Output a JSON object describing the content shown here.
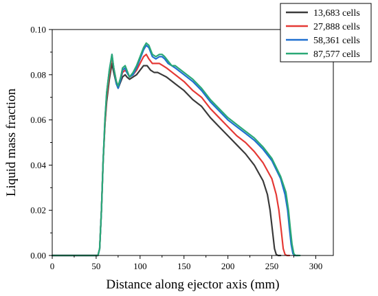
{
  "chart_data": {
    "type": "line",
    "xlabel": "Distance along ejector axis (mm)",
    "ylabel": "Liquid mass fraction",
    "xlim": [
      0,
      320
    ],
    "ylim": [
      0,
      0.1
    ],
    "x_ticks": [
      "0",
      "50",
      "100",
      "150",
      "200",
      "250",
      "300"
    ],
    "y_ticks": [
      "0.00",
      "0.02",
      "0.04",
      "0.06",
      "0.08",
      "0.10"
    ],
    "legend_position": "top-right",
    "grid": false,
    "series": [
      {
        "name": "13,683 cells",
        "color": "#3a3a3a",
        "points": [
          [
            0,
            0
          ],
          [
            52,
            0
          ],
          [
            54,
            0.003
          ],
          [
            56,
            0.02
          ],
          [
            58,
            0.042
          ],
          [
            60,
            0.058
          ],
          [
            62,
            0.068
          ],
          [
            65,
            0.078
          ],
          [
            68,
            0.085
          ],
          [
            70,
            0.081
          ],
          [
            73,
            0.076
          ],
          [
            75,
            0.074
          ],
          [
            78,
            0.077
          ],
          [
            80,
            0.079
          ],
          [
            83,
            0.08
          ],
          [
            85,
            0.079
          ],
          [
            88,
            0.078
          ],
          [
            92,
            0.079
          ],
          [
            96,
            0.08
          ],
          [
            100,
            0.082
          ],
          [
            104,
            0.084
          ],
          [
            108,
            0.084
          ],
          [
            112,
            0.082
          ],
          [
            116,
            0.081
          ],
          [
            120,
            0.081
          ],
          [
            125,
            0.08
          ],
          [
            130,
            0.079
          ],
          [
            140,
            0.076
          ],
          [
            150,
            0.073
          ],
          [
            160,
            0.069
          ],
          [
            170,
            0.066
          ],
          [
            180,
            0.061
          ],
          [
            190,
            0.057
          ],
          [
            200,
            0.053
          ],
          [
            210,
            0.049
          ],
          [
            220,
            0.045
          ],
          [
            230,
            0.04
          ],
          [
            240,
            0.033
          ],
          [
            245,
            0.027
          ],
          [
            248,
            0.02
          ],
          [
            251,
            0.01
          ],
          [
            253,
            0.003
          ],
          [
            255,
            0.0005
          ],
          [
            257,
            0
          ],
          [
            260,
            0
          ]
        ]
      },
      {
        "name": "27,888 cells",
        "color": "#e53935",
        "points": [
          [
            0,
            0
          ],
          [
            52,
            0
          ],
          [
            54,
            0.003
          ],
          [
            56,
            0.02
          ],
          [
            58,
            0.042
          ],
          [
            60,
            0.058
          ],
          [
            62,
            0.07
          ],
          [
            65,
            0.08
          ],
          [
            68,
            0.088
          ],
          [
            70,
            0.083
          ],
          [
            73,
            0.077
          ],
          [
            75,
            0.075
          ],
          [
            78,
            0.078
          ],
          [
            80,
            0.081
          ],
          [
            83,
            0.082
          ],
          [
            85,
            0.081
          ],
          [
            88,
            0.079
          ],
          [
            92,
            0.08
          ],
          [
            96,
            0.082
          ],
          [
            100,
            0.085
          ],
          [
            104,
            0.088
          ],
          [
            107,
            0.089
          ],
          [
            110,
            0.087
          ],
          [
            114,
            0.085
          ],
          [
            118,
            0.085
          ],
          [
            122,
            0.085
          ],
          [
            126,
            0.084
          ],
          [
            130,
            0.083
          ],
          [
            140,
            0.08
          ],
          [
            150,
            0.077
          ],
          [
            160,
            0.073
          ],
          [
            170,
            0.07
          ],
          [
            180,
            0.065
          ],
          [
            190,
            0.061
          ],
          [
            200,
            0.057
          ],
          [
            210,
            0.053
          ],
          [
            220,
            0.05
          ],
          [
            230,
            0.046
          ],
          [
            240,
            0.041
          ],
          [
            250,
            0.034
          ],
          [
            255,
            0.027
          ],
          [
            258,
            0.02
          ],
          [
            261,
            0.01
          ],
          [
            263,
            0.003
          ],
          [
            265,
            0.0005
          ],
          [
            267,
            0
          ],
          [
            270,
            0
          ]
        ]
      },
      {
        "name": "58,361 cells",
        "color": "#1e6fd0",
        "points": [
          [
            0,
            0
          ],
          [
            52,
            0
          ],
          [
            54,
            0.003
          ],
          [
            56,
            0.02
          ],
          [
            58,
            0.042
          ],
          [
            60,
            0.06
          ],
          [
            62,
            0.072
          ],
          [
            65,
            0.082
          ],
          [
            68,
            0.089
          ],
          [
            70,
            0.083
          ],
          [
            73,
            0.076
          ],
          [
            75,
            0.074
          ],
          [
            78,
            0.078
          ],
          [
            80,
            0.082
          ],
          [
            83,
            0.083
          ],
          [
            85,
            0.081
          ],
          [
            88,
            0.079
          ],
          [
            92,
            0.08
          ],
          [
            96,
            0.083
          ],
          [
            100,
            0.087
          ],
          [
            104,
            0.091
          ],
          [
            107,
            0.093
          ],
          [
            110,
            0.092
          ],
          [
            114,
            0.088
          ],
          [
            118,
            0.087
          ],
          [
            122,
            0.088
          ],
          [
            125,
            0.088
          ],
          [
            128,
            0.087
          ],
          [
            132,
            0.085
          ],
          [
            136,
            0.084
          ],
          [
            140,
            0.083
          ],
          [
            150,
            0.08
          ],
          [
            160,
            0.077
          ],
          [
            170,
            0.073
          ],
          [
            180,
            0.068
          ],
          [
            190,
            0.064
          ],
          [
            200,
            0.06
          ],
          [
            210,
            0.057
          ],
          [
            220,
            0.054
          ],
          [
            230,
            0.051
          ],
          [
            240,
            0.047
          ],
          [
            250,
            0.042
          ],
          [
            260,
            0.034
          ],
          [
            265,
            0.027
          ],
          [
            268,
            0.02
          ],
          [
            270,
            0.012
          ],
          [
            272,
            0.005
          ],
          [
            274,
            0.0008
          ],
          [
            276,
            0
          ],
          [
            280,
            0
          ]
        ]
      },
      {
        "name": "87,577 cells",
        "color": "#2aa876",
        "points": [
          [
            0,
            0
          ],
          [
            52,
            0
          ],
          [
            54,
            0.003
          ],
          [
            56,
            0.02
          ],
          [
            58,
            0.042
          ],
          [
            60,
            0.06
          ],
          [
            62,
            0.072
          ],
          [
            65,
            0.082
          ],
          [
            68,
            0.089
          ],
          [
            70,
            0.083
          ],
          [
            73,
            0.077
          ],
          [
            75,
            0.075
          ],
          [
            78,
            0.079
          ],
          [
            80,
            0.083
          ],
          [
            83,
            0.084
          ],
          [
            85,
            0.082
          ],
          [
            88,
            0.079
          ],
          [
            92,
            0.081
          ],
          [
            96,
            0.084
          ],
          [
            100,
            0.088
          ],
          [
            104,
            0.092
          ],
          [
            107,
            0.094
          ],
          [
            110,
            0.093
          ],
          [
            114,
            0.089
          ],
          [
            118,
            0.088
          ],
          [
            122,
            0.089
          ],
          [
            125,
            0.089
          ],
          [
            128,
            0.088
          ],
          [
            132,
            0.086
          ],
          [
            136,
            0.084
          ],
          [
            140,
            0.084
          ],
          [
            150,
            0.081
          ],
          [
            160,
            0.078
          ],
          [
            170,
            0.074
          ],
          [
            180,
            0.069
          ],
          [
            190,
            0.065
          ],
          [
            200,
            0.061
          ],
          [
            210,
            0.058
          ],
          [
            220,
            0.055
          ],
          [
            230,
            0.052
          ],
          [
            240,
            0.048
          ],
          [
            250,
            0.043
          ],
          [
            260,
            0.035
          ],
          [
            266,
            0.028
          ],
          [
            269,
            0.02
          ],
          [
            271,
            0.012
          ],
          [
            273,
            0.005
          ],
          [
            275,
            0.0008
          ],
          [
            277,
            0
          ],
          [
            282,
            0
          ]
        ]
      }
    ]
  }
}
